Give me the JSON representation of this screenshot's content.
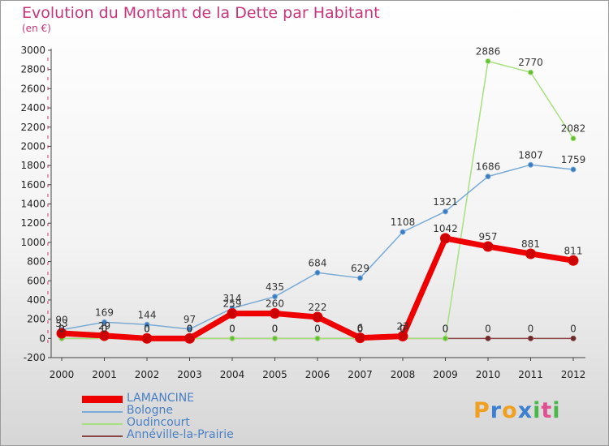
{
  "title": "Evolution du Montant de la Dette par Habitant",
  "subtitle": "(en €)",
  "logo": {
    "letters": [
      "P",
      "r",
      "o",
      "x",
      "i",
      "t",
      "i"
    ],
    "colors": [
      "#f0a020",
      "#3c7fd0",
      "#f0a020",
      "#3c7fd0",
      "#48b848",
      "#e05090",
      "#48b848"
    ]
  },
  "chart_data": {
    "type": "line",
    "title": "Evolution du Montant de la Dette par Habitant",
    "ylabel": "(en €)",
    "xlabel": "",
    "x": [
      "2000",
      "2001",
      "2002",
      "2003",
      "2004",
      "2005",
      "2006",
      "2007",
      "2008",
      "2009",
      "2010",
      "2011",
      "2012"
    ],
    "ylim": [
      -200,
      3000
    ],
    "yticks": [
      -200,
      0,
      200,
      400,
      600,
      800,
      1000,
      1200,
      1400,
      1600,
      1800,
      2000,
      2200,
      2400,
      2600,
      2800,
      3000
    ],
    "grid": false,
    "legend": "bottom-left",
    "series": [
      {
        "name": "LAMANCINE",
        "color": "#ee0000",
        "point_color": "#cc0000",
        "width": 7,
        "marker": 6,
        "values": [
          53,
          29,
          0,
          0,
          259,
          260,
          222,
          6,
          23,
          1042,
          957,
          881,
          811
        ],
        "labels": [
          "53",
          "29",
          "0",
          "0",
          "259",
          "260",
          "222",
          "6",
          "23",
          "1042",
          "957",
          "881",
          "811"
        ]
      },
      {
        "name": "Bologne",
        "color": "#7aabd6",
        "point_color": "#3a7cc2",
        "width": 1.5,
        "marker": 3,
        "values": [
          90,
          169,
          144,
          97,
          314,
          435,
          684,
          629,
          1108,
          1321,
          1686,
          1807,
          1759
        ],
        "labels": [
          "90",
          "169",
          "144",
          "97",
          "314",
          "435",
          "684",
          "629",
          "1108",
          "1321",
          "1686",
          "1807",
          "1759"
        ]
      },
      {
        "name": "Oudincourt",
        "color": "#a8e080",
        "point_color": "#60c030",
        "width": 1.5,
        "marker": 3,
        "values": [
          0,
          0,
          0,
          0,
          0,
          0,
          0,
          0,
          0,
          0,
          2886,
          2770,
          2082
        ],
        "labels": [
          "0",
          "0",
          "0",
          "0",
          "0",
          "0",
          "0",
          "0",
          "0",
          "0",
          "2886",
          "2770",
          "2082"
        ]
      },
      {
        "name": "Annéville-la-Prairie",
        "color": "#8a4545",
        "point_color": "#6a2a2a",
        "width": 1.5,
        "marker": 3,
        "values": [
          0,
          0,
          0,
          0,
          0,
          0,
          0,
          0,
          0,
          0,
          0,
          0,
          0
        ],
        "labels": [
          "0",
          "0",
          "0",
          "0",
          "0",
          "0",
          "0",
          "0",
          "0",
          "0",
          "0",
          "0",
          "0"
        ]
      }
    ]
  }
}
